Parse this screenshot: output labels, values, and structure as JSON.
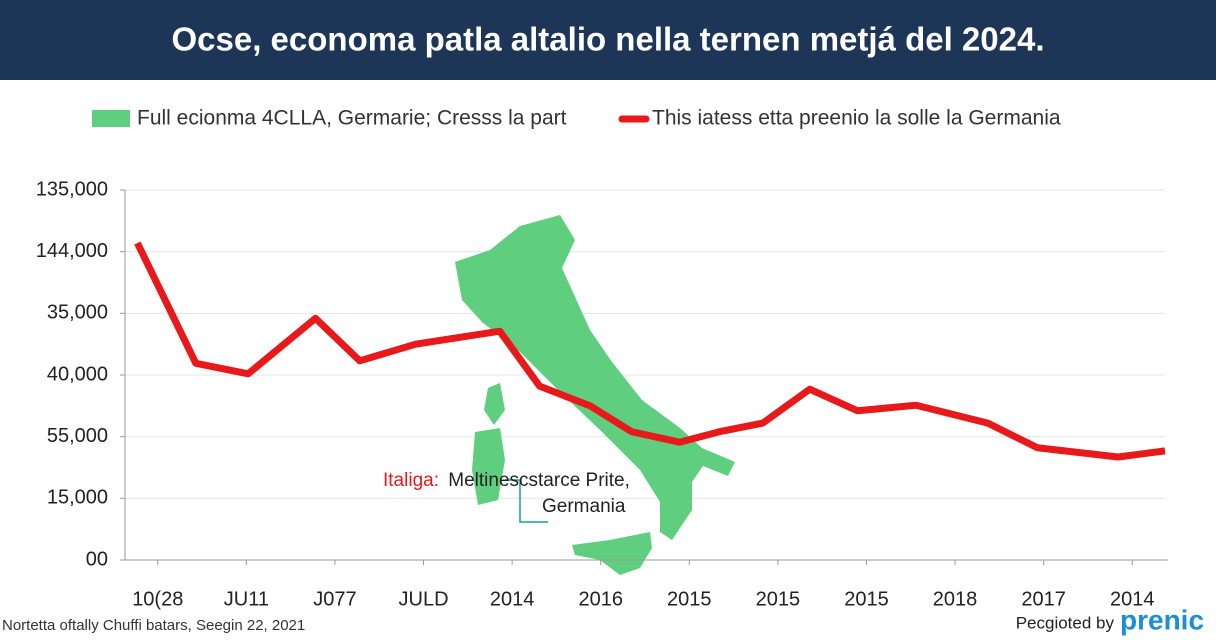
{
  "chart_data": {
    "type": "line",
    "title": "Ocse, economa patla altalio nella ternen metjá del 2024.",
    "map_legend": {
      "label": "Full ecionma 4CLLA, Germarie; Cresss la part",
      "color": "#5fcf7f"
    },
    "series": [
      {
        "name": "This iatess etta preenio la solle la Germania",
        "color": "#e8191b",
        "x": [
          -0.23,
          0.43,
          1.02,
          1.78,
          2.28,
          2.91,
          3.86,
          4.31,
          4.88,
          5.35,
          5.89,
          6.34,
          6.83,
          7.36,
          7.9,
          8.56,
          9.37,
          9.93,
          10.84,
          11.37
        ],
        "values": [
          5.14,
          3.19,
          3.02,
          3.92,
          3.23,
          3.5,
          3.71,
          2.82,
          2.5,
          2.08,
          1.91,
          2.08,
          2.22,
          2.77,
          2.42,
          2.51,
          2.22,
          1.82,
          1.67,
          1.77
        ]
      }
    ],
    "xlim": [
      -0.37,
      11.37
    ],
    "xticks": [
      {
        "value": 0,
        "label": "10(28"
      },
      {
        "value": 1,
        "label": "JU11"
      },
      {
        "value": 2,
        "label": "J077"
      },
      {
        "value": 3,
        "label": "JULD"
      },
      {
        "value": 4,
        "label": "2014"
      },
      {
        "value": 5,
        "label": "2016"
      },
      {
        "value": 6,
        "label": "2015"
      },
      {
        "value": 7,
        "label": "2015"
      },
      {
        "value": 8,
        "label": "2015"
      },
      {
        "value": 9,
        "label": "2018"
      },
      {
        "value": 10,
        "label": "2017"
      },
      {
        "value": 11,
        "label": "2014"
      }
    ],
    "ylim": [
      0,
      6
    ],
    "yticks": [
      {
        "value": 0,
        "label": "00"
      },
      {
        "value": 1,
        "label": "15,000"
      },
      {
        "value": 2,
        "label": "55,000"
      },
      {
        "value": 3,
        "label": "40,000"
      },
      {
        "value": 4,
        "label": "35,000"
      },
      {
        "value": 5,
        "label": "144,000"
      },
      {
        "value": 6,
        "label": "135,000"
      }
    ],
    "grid": true,
    "annotation": {
      "prefix": "Italiga:",
      "text": "Meltinescstarce Prite,",
      "text2": "Germania"
    },
    "footer": {
      "source": "Nortetta oftally Chuffi batars, Seegin 22, 2021",
      "credit": "Pecgioted by",
      "brand": "prenic"
    }
  }
}
